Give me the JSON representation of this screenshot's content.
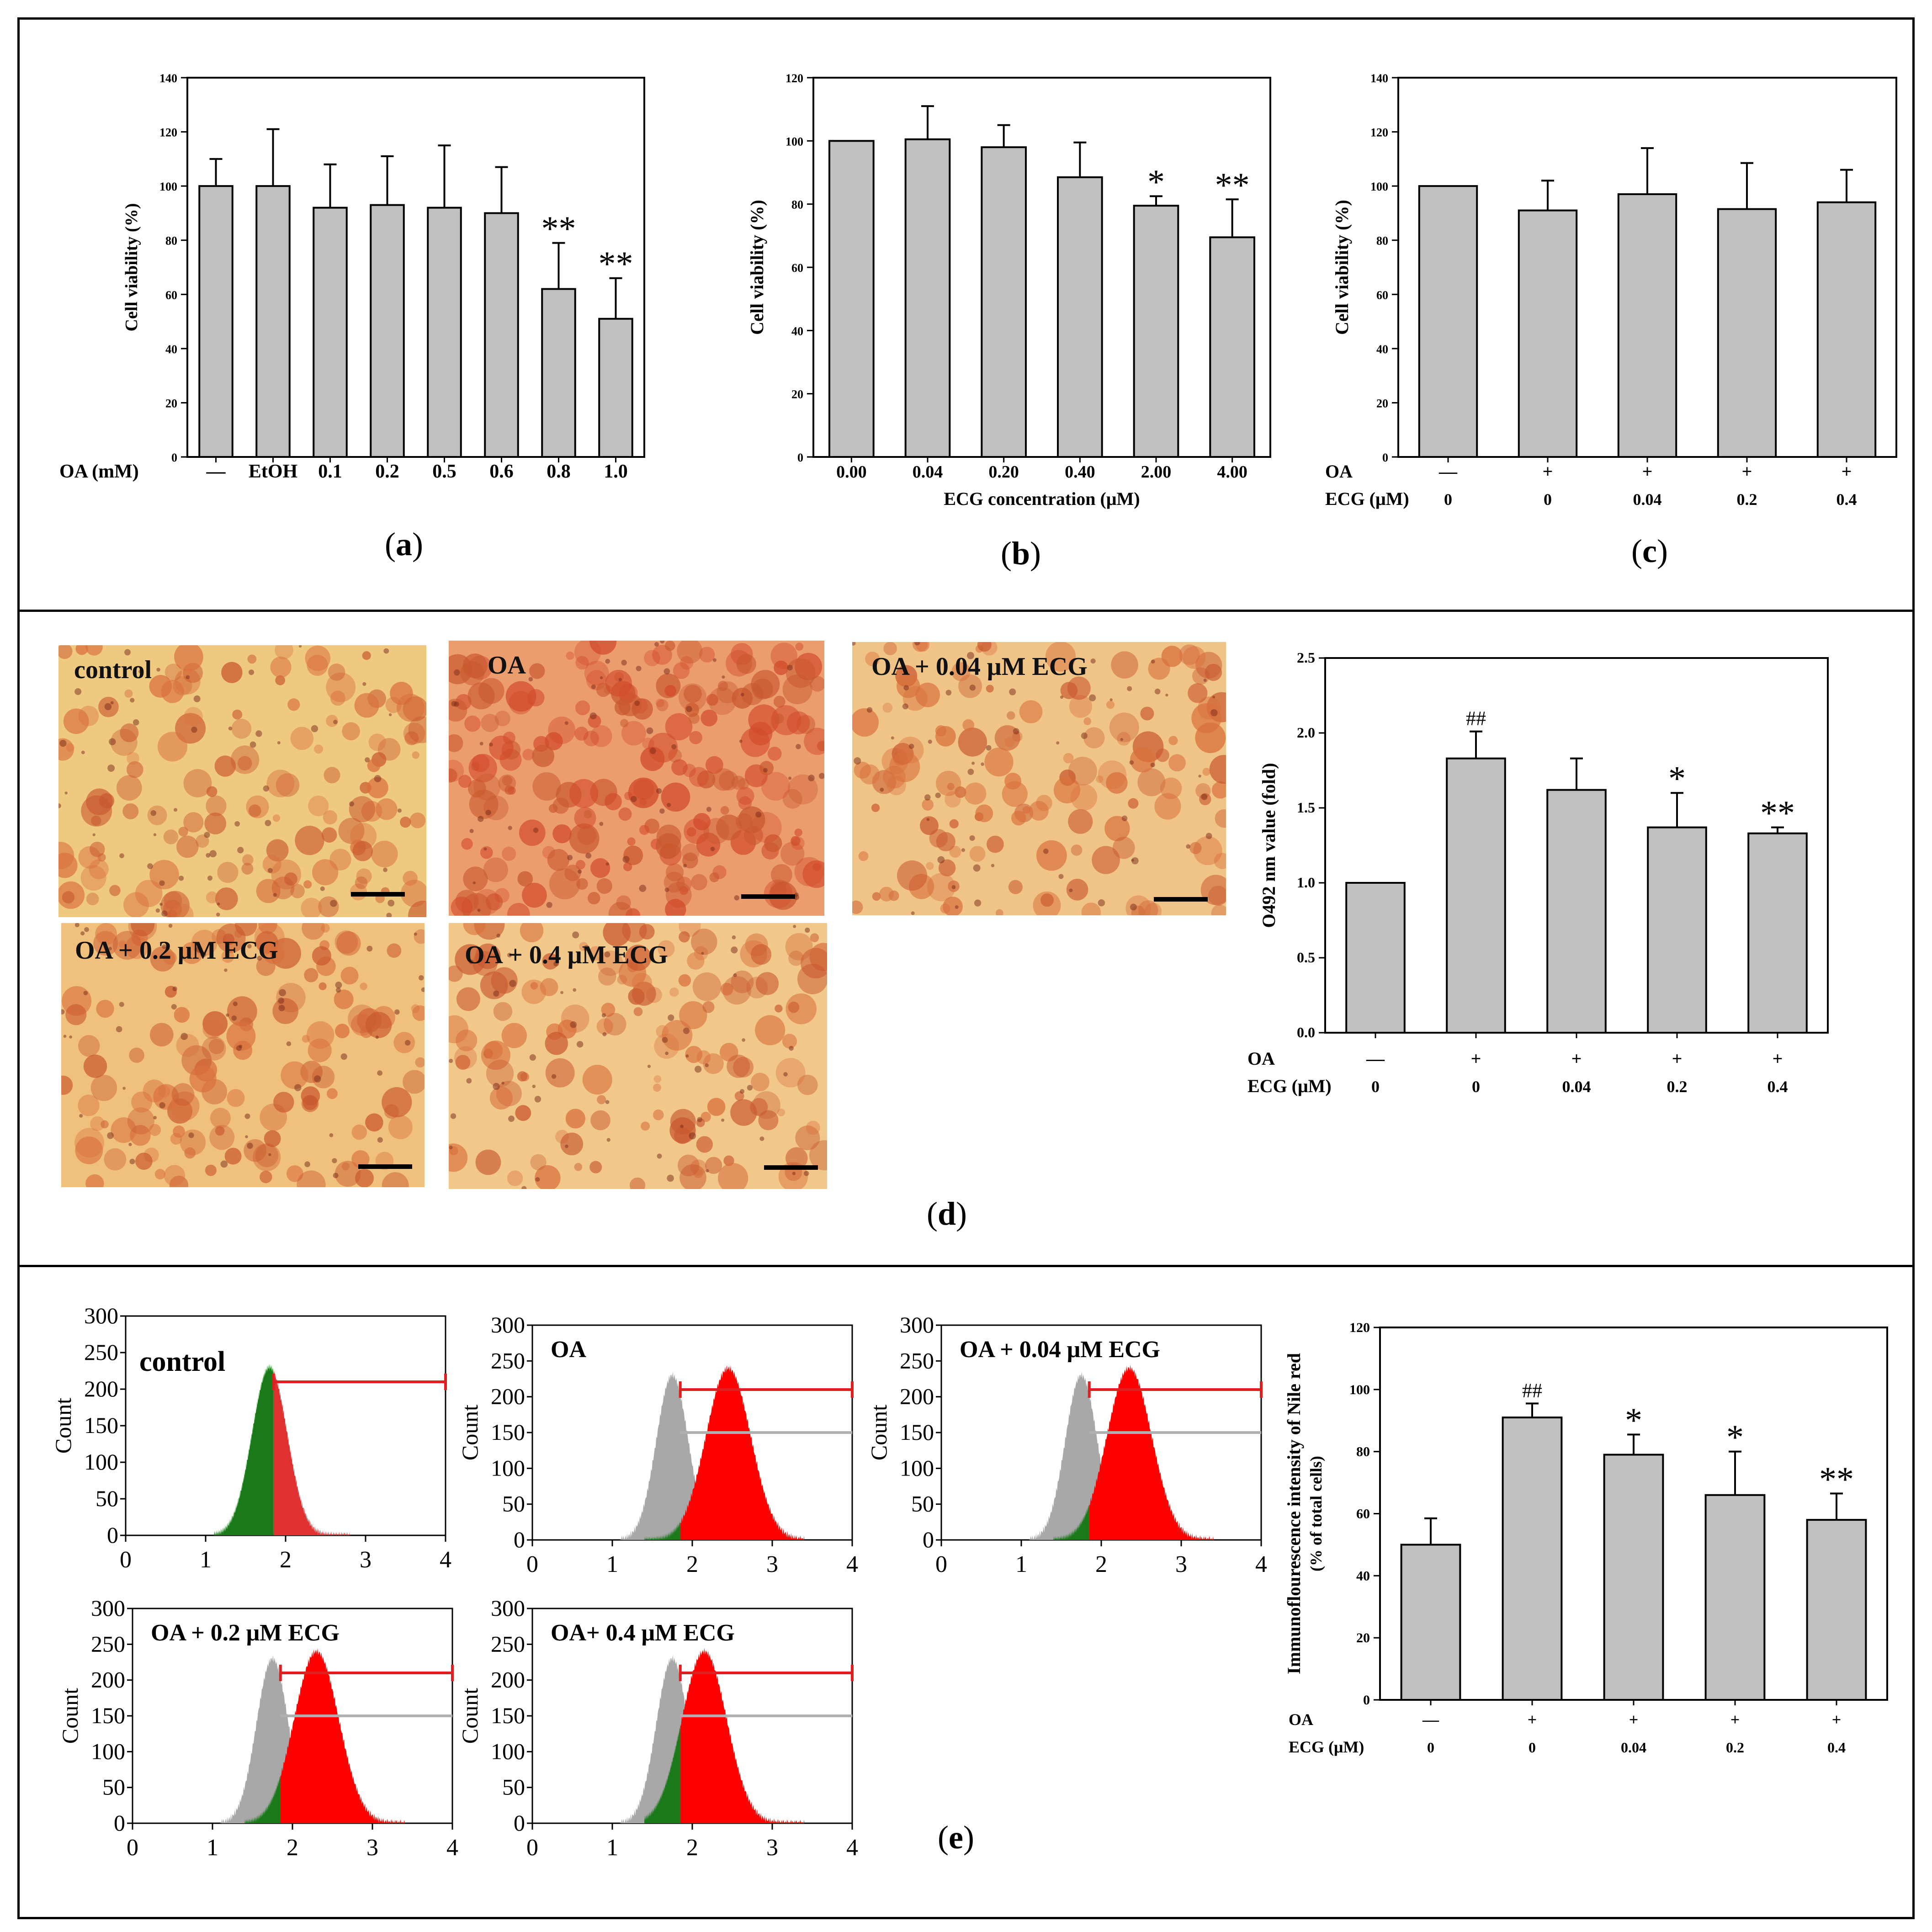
{
  "panel_letters": {
    "a": "a",
    "b": "b",
    "c": "c",
    "d": "d",
    "e": "e"
  },
  "micrographs": [
    {
      "label": "control",
      "tone": "#efc980"
    },
    {
      "label": "OA",
      "tone": "#ec9d6e"
    },
    {
      "label": "OA + 0.04 μM ECG",
      "tone": "#f0c486"
    },
    {
      "label": "OA + 0.2 μM ECG",
      "tone": "#f0c17d"
    },
    {
      "label": "OA + 0.4 μM ECG",
      "tone": "#f1c88a"
    }
  ],
  "flow_panels": [
    {
      "label": "control",
      "mode": "control",
      "red_peak": 2.0,
      "red_frac": 0.5,
      "yticks": [
        "0",
        "50",
        "100",
        "150",
        "200",
        "250",
        "300"
      ],
      "xticks": [
        "0",
        "1",
        "2",
        "3",
        "4"
      ],
      "ylabel": "Count"
    },
    {
      "label": "OA",
      "mode": "treated",
      "red_peak": 2.45,
      "red_frac": 0.91,
      "yticks": [
        "0",
        "50",
        "100",
        "150",
        "200",
        "250",
        "300"
      ],
      "xticks": [
        "0",
        "1",
        "2",
        "3",
        "4"
      ],
      "ylabel": "Count"
    },
    {
      "label": "OA + 0.04 μM ECG",
      "mode": "treated",
      "red_peak": 2.35,
      "red_frac": 0.79,
      "yticks": [
        "0",
        "50",
        "100",
        "150",
        "200",
        "250",
        "300"
      ],
      "xticks": [
        "0",
        "1",
        "2",
        "3",
        "4"
      ],
      "ylabel": "Count"
    },
    {
      "label": "OA + 0.2 μM ECG",
      "mode": "treated",
      "red_peak": 2.3,
      "red_frac": 0.66,
      "yticks": [
        "0",
        "50",
        "100",
        "150",
        "200",
        "250",
        "300"
      ],
      "xticks": [
        "0",
        "1",
        "2",
        "3",
        "4"
      ],
      "ylabel": "Count"
    },
    {
      "label": "OA+ 0.4 μM ECG",
      "mode": "treated",
      "red_peak": 2.15,
      "red_frac": 0.58,
      "yticks": [
        "0",
        "50",
        "100",
        "150",
        "200",
        "250",
        "300"
      ],
      "xticks": [
        "0",
        "1",
        "2",
        "3",
        "4"
      ],
      "ylabel": "Count"
    }
  ],
  "colors": {
    "bar": "#c0c0c0",
    "green": "#1a7a1a",
    "red": "#ff0000",
    "gray": "#a8a8a8",
    "gate": "#e02020"
  },
  "chart_data": [
    {
      "id": "a",
      "type": "bar",
      "ylabel": "Cell viability (%)",
      "ylim": [
        0,
        140
      ],
      "yticks": [
        0,
        20,
        40,
        60,
        80,
        100,
        120,
        140
      ],
      "row_labels": [
        "OA (mM)"
      ],
      "categories": [
        "—",
        "EtOH",
        "0.1",
        "0.2",
        "0.5",
        "0.6",
        "0.8",
        "1.0"
      ],
      "values": [
        100,
        100,
        92,
        93,
        92,
        90,
        62,
        51
      ],
      "errors": [
        10,
        21,
        16,
        18,
        23,
        17,
        17,
        15
      ],
      "annotations": [
        "",
        "",
        "",
        "",
        "",
        "",
        "**",
        "**"
      ]
    },
    {
      "id": "b",
      "type": "bar",
      "ylabel": "Cell viability (%)",
      "xlabel": "ECG concentration (μM)",
      "ylim": [
        0,
        120
      ],
      "yticks": [
        0,
        20,
        40,
        60,
        80,
        100,
        120
      ],
      "categories": [
        "0.00",
        "0.04",
        "0.20",
        "0.40",
        "2.00",
        "4.00"
      ],
      "values": [
        100,
        100.5,
        98,
        88.5,
        79.5,
        69.5
      ],
      "errors": [
        0,
        10.5,
        7,
        11,
        3,
        12
      ],
      "annotations": [
        "",
        "",
        "",
        "",
        "*",
        "**"
      ]
    },
    {
      "id": "c",
      "type": "bar",
      "ylabel": "Cell viability (%)",
      "ylim": [
        0,
        140
      ],
      "yticks": [
        0,
        20,
        40,
        60,
        80,
        100,
        120,
        140
      ],
      "row_labels": [
        "OA",
        "ECG (μM)"
      ],
      "categories": [
        "—",
        "+",
        "+",
        "+",
        "+"
      ],
      "categories2": [
        "0",
        "0",
        "0.04",
        "0.2",
        "0.4"
      ],
      "values": [
        100,
        91,
        97,
        91.5,
        94
      ],
      "errors": [
        0,
        11,
        17,
        17,
        12
      ],
      "annotations": [
        "",
        "",
        "",
        "",
        ""
      ]
    },
    {
      "id": "d",
      "type": "bar",
      "ylabel": "O492 nm value (fold)",
      "ylim": [
        0,
        2.5
      ],
      "yticks": [
        "0.0",
        "0.5",
        "1.0",
        "1.5",
        "2.0",
        "2.5"
      ],
      "row_labels": [
        "OA",
        "ECG (μM)"
      ],
      "categories": [
        "—",
        "+",
        "+",
        "+",
        "+"
      ],
      "categories2": [
        "0",
        "0",
        "0.04",
        "0.2",
        "0.4"
      ],
      "values": [
        1.0,
        1.83,
        1.62,
        1.37,
        1.33
      ],
      "errors": [
        0,
        0.18,
        0.21,
        0.23,
        0.04
      ],
      "annotations": [
        "",
        "##",
        "",
        "*",
        "**"
      ]
    },
    {
      "id": "e",
      "type": "bar",
      "ylabel": "Immunoflourescence intensity of Nile red",
      "ylabel2": "(% of total cells)",
      "ylim": [
        0,
        120
      ],
      "yticks": [
        0,
        20,
        40,
        60,
        80,
        100,
        120
      ],
      "row_labels": [
        "OA",
        "ECG (μM)"
      ],
      "categories": [
        "—",
        "+",
        "+",
        "+",
        "+"
      ],
      "categories2": [
        "0",
        "0",
        "0.04",
        "0.2",
        "0.4"
      ],
      "values": [
        50,
        91,
        79,
        66,
        58
      ],
      "errors": [
        8.5,
        4.5,
        6.5,
        14,
        8.5
      ],
      "annotations": [
        "",
        "##",
        "*",
        "*",
        "**"
      ]
    }
  ]
}
